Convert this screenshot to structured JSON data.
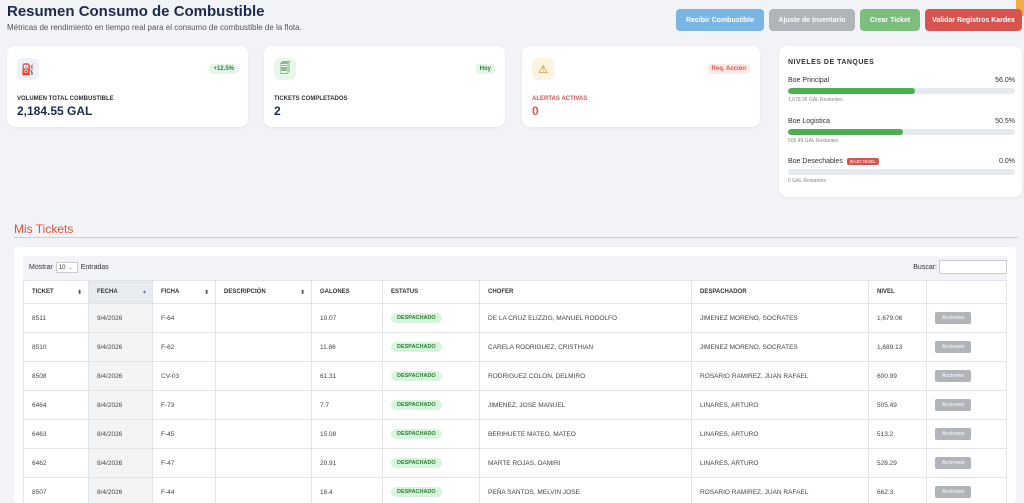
{
  "header": {
    "title": "Resumen Consumo de Combustible",
    "subtitle": "Métricas de rendimiento en tiempo real para el consumo de combustible de la flota."
  },
  "actions": {
    "recibir": "Recibir Combustible",
    "ajuste": "Ajuste de Inventario",
    "crear": "Crear Ticket",
    "validar": "Validar Registros Kardex"
  },
  "cards": [
    {
      "icon": "fuel-pump-icon",
      "badge": "+12.5%",
      "label": "VOLUMEN TOTAL COMBUSTIBLE",
      "value": "2,184.55 GAL"
    },
    {
      "icon": "ticket-icon",
      "badge": "Hoy",
      "label": "TICKETS COMPLETADOS",
      "value": "2"
    },
    {
      "icon": "warning-icon",
      "badge": "Req. Acción",
      "label": "ALERTAS ACTIVAS",
      "value": "0"
    }
  ],
  "tanks": {
    "title": "NIVELES DE TANQUES",
    "items": [
      {
        "name": "Boe Principal",
        "percent": "56.0%",
        "fill": 0.56,
        "remaining": "1,679.06 GAL Restantes"
      },
      {
        "name": "Boe Logistica",
        "percent": "50.5%",
        "fill": 0.505,
        "remaining": "505.49 GAL Restantes"
      },
      {
        "name": "Boe Desechables",
        "percent": "0.0%",
        "fill": 0,
        "badge": "BAJO NIVEL",
        "remaining": "0 GAL Restantes"
      }
    ]
  },
  "tickets_section": {
    "title": "Mis Tickets",
    "show_label": "Mostrar",
    "show_value": "10",
    "entries_label": "Entradas",
    "search_label": "Buscar:"
  },
  "table": {
    "columns": [
      "TICKET",
      "FECHA",
      "FICHA",
      "DESCRIPCIÓN",
      "GALONES",
      "ESTATUS",
      "CHOFER",
      "DESPACHADOR",
      "NIVEL",
      ""
    ],
    "action_label": "Acciones",
    "rows": [
      [
        "8511",
        "9/4/2026",
        "F-64",
        "",
        "10.07",
        "DESPACHADO",
        "DE LA CRUZ ELIZZIG, MANUEL RODOLFO",
        "JIMENEZ MORENO, SOCRATES",
        "1,679.06"
      ],
      [
        "8510",
        "9/4/2026",
        "F-62",
        "",
        "11.86",
        "DESPACHADO",
        "CARELA RODRIGUEZ, CRISTHIAN",
        "JIMENEZ MORENO, SOCRATES",
        "1,689.13"
      ],
      [
        "8508",
        "8/4/2026",
        "CV-03",
        "",
        "61.31",
        "DESPACHADO",
        "RODRIGUEZ COLON, DELMIRO",
        "ROSARIO RAMIREZ, JUAN RAFAEL",
        "600.99"
      ],
      [
        "6464",
        "8/4/2026",
        "F-73",
        "",
        "7.7",
        "DESPACHADO",
        "JIMENEZ, JOSE MANUEL",
        "LINARES, ARTURO",
        "505.49"
      ],
      [
        "6463",
        "8/4/2026",
        "F-45",
        "",
        "15.08",
        "DESPACHADO",
        "BERIHUETE MATEO, MATEO",
        "LINARES, ARTURO",
        "513.2"
      ],
      [
        "6462",
        "8/4/2026",
        "F-47",
        "",
        "20.91",
        "DESPACHADO",
        "MARTE ROJAS, DAMIRI",
        "LINARES, ARTURO",
        "528.29"
      ],
      [
        "8507",
        "8/4/2026",
        "F-44",
        "",
        "16.4",
        "DESPACHADO",
        "PEÑA SANTOS, MELVIN JOSE",
        "ROSARIO RAMIREZ, JUAN RAFAEL",
        "662.3"
      ]
    ]
  },
  "colors": {
    "primary": "#1a2b4c",
    "danger": "#d9534f",
    "success": "#4caf50",
    "info": "#79b6e4"
  }
}
